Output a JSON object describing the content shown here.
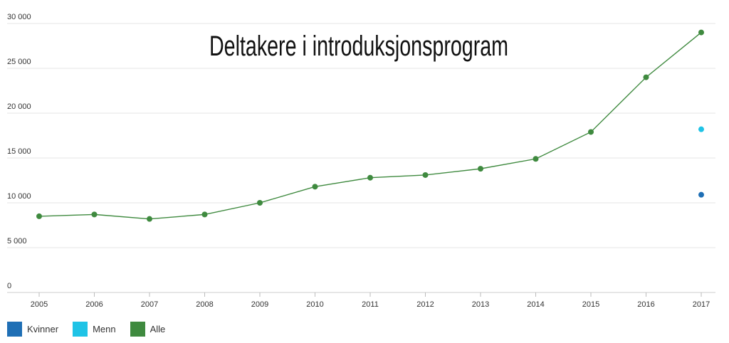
{
  "chart_data": {
    "type": "line",
    "title": "Deltakere i introduksjonsprogram",
    "xlabel": "",
    "ylabel": "",
    "categories": [
      "2005",
      "2006",
      "2007",
      "2008",
      "2009",
      "2010",
      "2011",
      "2012",
      "2013",
      "2014",
      "2015",
      "2016",
      "2017"
    ],
    "ylim": [
      0,
      30000
    ],
    "yticks": [
      0,
      5000,
      10000,
      15000,
      20000,
      25000,
      30000
    ],
    "ytick_labels": [
      "0",
      "5 000",
      "10 000",
      "15 000",
      "20 000",
      "25 000",
      "30 000"
    ],
    "grid": true,
    "legend_position": "bottom-left",
    "series": [
      {
        "name": "Kvinner",
        "color": "#1f6fb5",
        "values": [
          null,
          null,
          null,
          null,
          null,
          null,
          null,
          null,
          null,
          null,
          null,
          null,
          10900
        ]
      },
      {
        "name": "Menn",
        "color": "#1fc3e6",
        "values": [
          null,
          null,
          null,
          null,
          null,
          null,
          null,
          null,
          null,
          null,
          null,
          null,
          18200
        ]
      },
      {
        "name": "Alle",
        "color": "#3f8a3f",
        "values": [
          8500,
          8700,
          8200,
          8700,
          10000,
          11800,
          12800,
          13100,
          13800,
          14900,
          17900,
          24000,
          29000
        ]
      }
    ]
  }
}
